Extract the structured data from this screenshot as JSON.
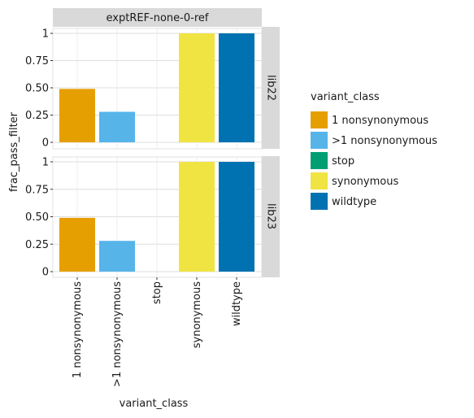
{
  "chart_data": {
    "type": "bar",
    "facet_column_label": "exptREF-none-0-ref",
    "xlabel": "variant_class",
    "ylabel": "frac_pass_filter",
    "ylim": [
      0,
      1
    ],
    "y_ticks": [
      0,
      0.25,
      0.5,
      0.75,
      1
    ],
    "y_tick_labels": [
      "0",
      "0.25",
      "0.50",
      "0.75",
      "1"
    ],
    "categories": [
      "1 nonsynonymous",
      ">1 nonsynonymous",
      "stop",
      "synonymous",
      "wildtype"
    ],
    "colors": [
      "#E69F00",
      "#56B4E9",
      "#009E73",
      "#F0E442",
      "#0072B2"
    ],
    "grid": true,
    "legend": {
      "title": "variant_class",
      "placement": "right",
      "entries": [
        "1 nonsynonymous",
        ">1 nonsynonymous",
        "stop",
        "synonymous",
        "wildtype"
      ]
    },
    "panels": [
      {
        "label": "lib22",
        "values": [
          0.49,
          0.28,
          0,
          1,
          1
        ]
      },
      {
        "label": "lib23",
        "values": [
          0.49,
          0.28,
          0,
          1,
          1
        ]
      }
    ]
  }
}
